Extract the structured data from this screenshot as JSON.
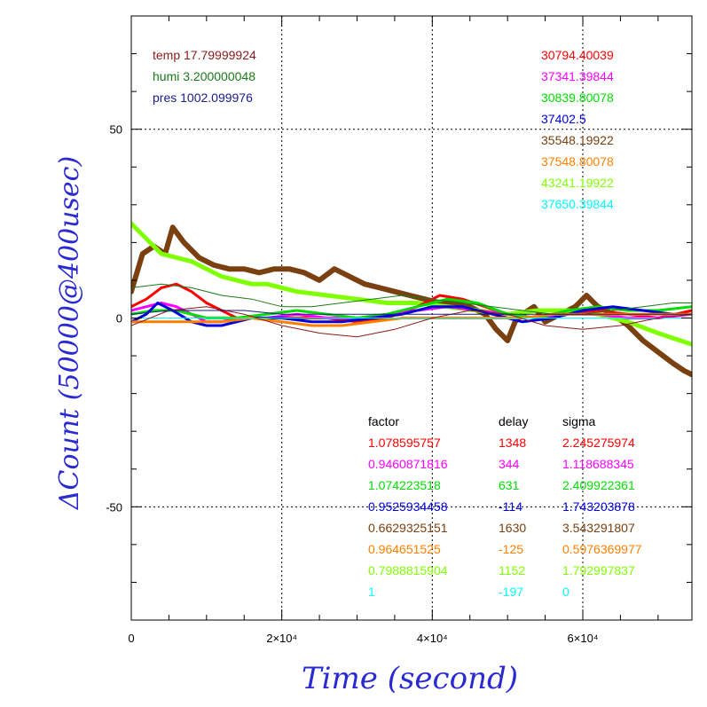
{
  "chart_data": {
    "type": "line",
    "xlabel": "Time (second)",
    "ylabel": "ΔCount (50000@400usec)",
    "xlim": [
      0,
      74500
    ],
    "ylim": [
      -80,
      80
    ],
    "x_ticks": [
      {
        "value": 0,
        "label": "0"
      },
      {
        "value": 20000,
        "label": "2×10⁴"
      },
      {
        "value": 40000,
        "label": "4×10⁴"
      },
      {
        "value": 60000,
        "label": "6×10⁴"
      }
    ],
    "y_ticks": [
      {
        "value": 50,
        "label": "50"
      },
      {
        "value": 0,
        "label": "0"
      },
      {
        "value": -50,
        "label": "-50"
      }
    ],
    "grid": "dotted",
    "env_labels": [
      {
        "text": "temp 17.79999924",
        "color": "#8b1a1a"
      },
      {
        "text": "humi 3.200000048",
        "color": "#1a7a1a"
      },
      {
        "text": "pres 1002.099976",
        "color": "#1a1a8b"
      }
    ],
    "right_labels": [
      {
        "text": "30794.40039",
        "color": "#ff0000"
      },
      {
        "text": "37341.39844",
        "color": "#ff00ff"
      },
      {
        "text": "30839.80078",
        "color": "#00dd00"
      },
      {
        "text": "37402.5",
        "color": "#0000dd"
      },
      {
        "text": "35548.19922",
        "color": "#7a4010"
      },
      {
        "text": "37548.80078",
        "color": "#ff8000"
      },
      {
        "text": "43241.19922",
        "color": "#80ff00"
      },
      {
        "text": "37650.39844",
        "color": "#00ffff"
      }
    ],
    "table": {
      "headers": [
        "factor",
        "delay",
        "sigma"
      ],
      "rows": [
        {
          "factor": "1.078595757",
          "delay": "1348",
          "sigma": "2.245275974",
          "color": "#ff0000"
        },
        {
          "factor": "0.9460871816",
          "delay": "344",
          "sigma": "1.118688345",
          "color": "#ff00ff"
        },
        {
          "factor": "1.074223518",
          "delay": "631",
          "sigma": "2.409922361",
          "color": "#00dd00"
        },
        {
          "factor": "0.9525934458",
          "delay": "-114",
          "sigma": "1.743203878",
          "color": "#0000dd"
        },
        {
          "factor": "0.6629325151",
          "delay": "1630",
          "sigma": "3.543291807",
          "color": "#7a4010"
        },
        {
          "factor": "0.964651525",
          "delay": "-125",
          "sigma": "0.5976369977",
          "color": "#ff8000"
        },
        {
          "factor": "0.7988815904",
          "delay": "1152",
          "sigma": "1.792997837",
          "color": "#80ff00"
        },
        {
          "factor": "1",
          "delay": "-197",
          "sigma": "0",
          "color": "#00ffff"
        }
      ]
    },
    "series": [
      {
        "color": "#7a4010",
        "width": 6,
        "x": [
          0,
          1500,
          3000,
          4500,
          5500,
          7000,
          9000,
          11000,
          13000,
          15000,
          17000,
          19000,
          21000,
          23000,
          25000,
          27000,
          29000,
          31000,
          33000,
          35000,
          37000,
          39000,
          41000,
          43000,
          45000,
          47000,
          48500,
          50000,
          51000,
          52000,
          53500,
          55000,
          57000,
          59000,
          60500,
          62000,
          64000,
          66000,
          68000,
          70000,
          72000,
          73500,
          74500
        ],
        "y": [
          7,
          17,
          19,
          17,
          24,
          20,
          16,
          14,
          13,
          13,
          12,
          13,
          13,
          12,
          10,
          13,
          11,
          9,
          8,
          7,
          6,
          5,
          4,
          4,
          3,
          1,
          -3,
          -6,
          -1,
          1,
          3,
          -1,
          1,
          3,
          6,
          3,
          1,
          -2,
          -6,
          -9,
          -12,
          -14,
          -15
        ]
      },
      {
        "color": "#80ff00",
        "width": 5,
        "x": [
          0,
          2000,
          4000,
          6000,
          8000,
          10000,
          12000,
          14000,
          16000,
          18000,
          22000,
          26000,
          30000,
          34000,
          38000,
          42000,
          46000,
          50000,
          54000,
          58000,
          62000,
          66000,
          70000,
          74500
        ],
        "y": [
          25,
          21,
          17,
          16,
          15,
          13,
          11,
          10,
          9,
          9,
          7,
          6,
          5,
          4,
          4,
          3,
          2,
          1,
          2,
          2,
          1,
          -1,
          -4,
          -7
        ]
      },
      {
        "color": "#ff0000",
        "width": 3,
        "x": [
          0,
          2000,
          4000,
          6000,
          8000,
          10000,
          12000,
          14000,
          16000,
          18000,
          22000,
          26000,
          30000,
          34000,
          38000,
          41000,
          44000,
          47000,
          50000,
          54000,
          58000,
          62000,
          66000,
          70000,
          74500
        ],
        "y": [
          3,
          5,
          8,
          9,
          7,
          4,
          2,
          0,
          0,
          0,
          0,
          0,
          -1,
          0,
          3,
          6,
          5,
          3,
          1,
          0,
          1,
          2,
          1,
          0,
          2
        ]
      },
      {
        "color": "#ff00ff",
        "width": 3,
        "x": [
          0,
          2000,
          4000,
          6000,
          8000,
          10000,
          12000,
          14000,
          18000,
          22000,
          26000,
          30000,
          34000,
          38000,
          42000,
          46000,
          50000,
          54000,
          58000,
          62000,
          66000,
          70000,
          74500
        ],
        "y": [
          2,
          3,
          4,
          3,
          1,
          -1,
          -1,
          0,
          0,
          1,
          0,
          0,
          1,
          2,
          3,
          2,
          1,
          0,
          1,
          1,
          0,
          0,
          1
        ]
      },
      {
        "color": "#00dd00",
        "width": 3,
        "x": [
          0,
          3000,
          6000,
          10000,
          14000,
          18000,
          22000,
          26000,
          30000,
          34000,
          38000,
          42000,
          46000,
          50000,
          54000,
          58000,
          62000,
          66000,
          70000,
          74500
        ],
        "y": [
          1,
          2,
          2,
          0,
          0,
          1,
          2,
          1,
          0,
          1,
          3,
          5,
          4,
          1,
          0,
          2,
          3,
          2,
          2,
          3
        ]
      },
      {
        "color": "#0000dd",
        "width": 3,
        "x": [
          0,
          2000,
          3500,
          5500,
          8000,
          10000,
          12000,
          14000,
          16000,
          20000,
          24000,
          28000,
          32000,
          36000,
          40000,
          44000,
          48000,
          52000,
          56000,
          60000,
          64000,
          68000,
          72000,
          74500
        ],
        "y": [
          -1,
          1,
          4,
          2,
          -1,
          -2,
          -2,
          -1,
          0,
          0,
          -1,
          -1,
          0,
          1,
          3,
          3,
          1,
          -1,
          0,
          2,
          3,
          2,
          1,
          1
        ]
      },
      {
        "color": "#ff8000",
        "width": 3,
        "x": [
          0,
          4000,
          8000,
          12000,
          16000,
          20000,
          24000,
          28000,
          32000,
          36000,
          40000,
          44000,
          48000,
          52000,
          56000,
          60000,
          64000,
          68000,
          72000,
          74500
        ],
        "y": [
          -1,
          -1,
          -1,
          -1,
          0,
          -1,
          -2,
          -2,
          -1,
          0,
          0,
          0,
          0,
          0,
          1,
          1,
          1,
          1,
          1,
          1
        ]
      },
      {
        "color": "#00ffff",
        "width": 1,
        "x": [
          0,
          74500
        ],
        "y": [
          0,
          0
        ]
      },
      {
        "color": "#8b1a1a",
        "width": 1,
        "x": [
          0,
          5000,
          10000,
          15000,
          20000,
          25000,
          30000,
          35000,
          40000,
          45000,
          50000,
          55000,
          60000,
          65000,
          70000,
          74500
        ],
        "y": [
          -2,
          2,
          3,
          1,
          -2,
          -4,
          -5,
          -3,
          0,
          2,
          1,
          -2,
          -3,
          -2,
          0,
          1
        ]
      },
      {
        "color": "#1a7a1a",
        "width": 1,
        "x": [
          0,
          4000,
          8000,
          12000,
          16000,
          20000,
          24000,
          28000,
          32000,
          36000,
          40000,
          44000,
          48000,
          52000,
          56000,
          60000,
          64000,
          68000,
          72000,
          74500
        ],
        "y": [
          8,
          9,
          8,
          6,
          5,
          3,
          3,
          4,
          5,
          6,
          5,
          4,
          3,
          2,
          1,
          1,
          2,
          3,
          4,
          4
        ]
      },
      {
        "color": "#1a1a8b",
        "width": 1,
        "x": [
          0,
          5000,
          10000,
          15000,
          20000,
          25000,
          30000,
          35000,
          40000,
          45000,
          50000,
          55000,
          60000,
          65000,
          70000,
          74500
        ],
        "y": [
          1,
          2,
          2,
          2,
          1,
          1,
          1,
          1,
          1,
          1,
          1,
          1,
          1,
          1,
          1,
          1
        ]
      }
    ]
  }
}
